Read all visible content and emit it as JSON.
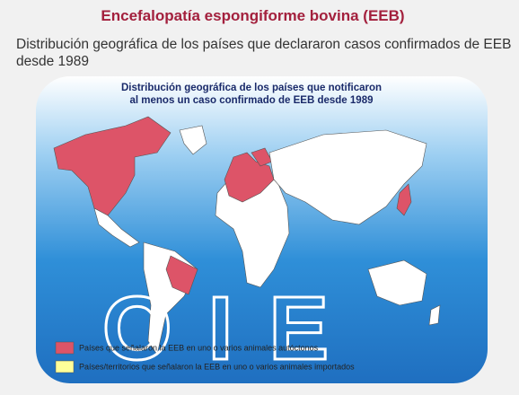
{
  "header": {
    "title": "Encefalopatía espongiforme bovina (EEB)",
    "subtitle": "Distribución geográfica de los países que declararon casos confirmados de EEB desde 1989"
  },
  "map": {
    "title_lines": [
      "Distribución geográfica de los países que notificaron",
      "al menos un caso confirmado de EEB desde 1989"
    ],
    "logo": "OIE",
    "legend": [
      {
        "label": "Países que señalaron la EEB en uno o varios animales autóctonos",
        "color": "#dd5468"
      },
      {
        "label": "Países/territorios que señalaron la EEB  en uno o varios animales importados",
        "color": "#ffff99"
      }
    ]
  }
}
